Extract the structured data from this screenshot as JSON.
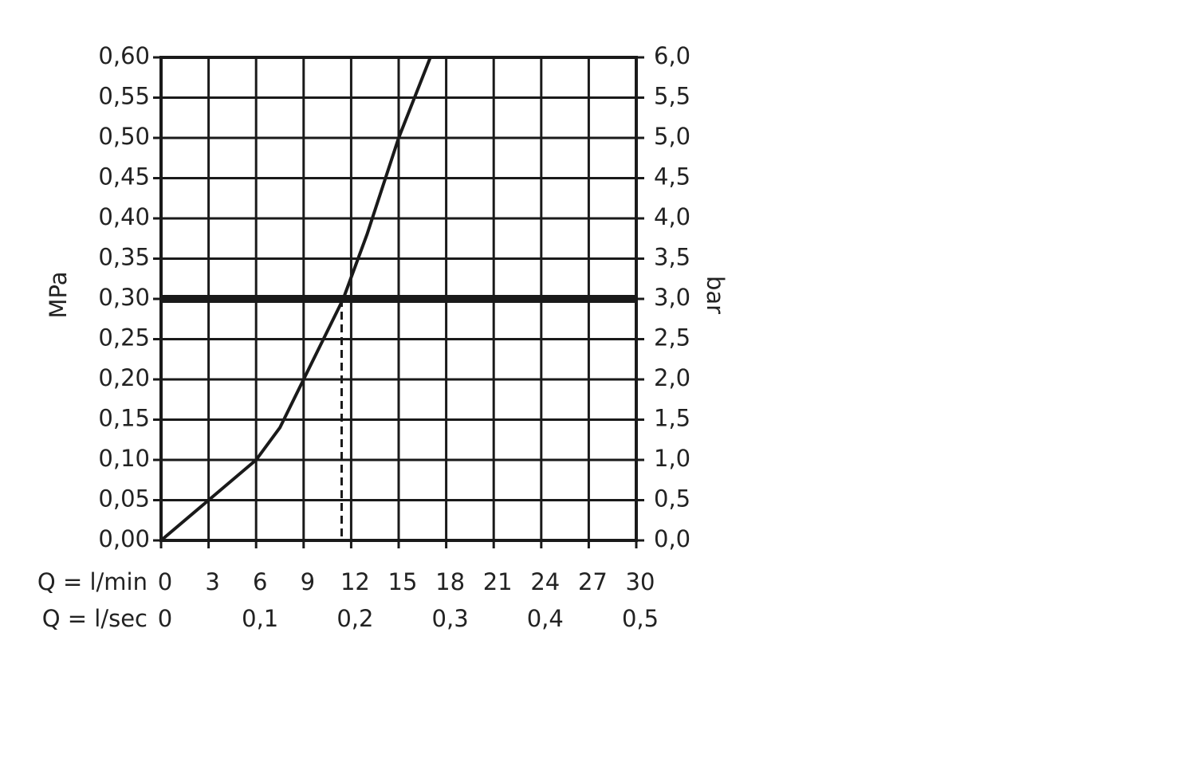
{
  "chart_data": {
    "type": "line",
    "ylabel": "MPa",
    "y2label": "bar",
    "xlabel": "Q = l/min",
    "x2label": "Q = l/sec",
    "xlim": [
      0,
      30
    ],
    "xticks": [
      0,
      3,
      6,
      9,
      12,
      15,
      18,
      21,
      24,
      27,
      30
    ],
    "x2lim": [
      0,
      0.5
    ],
    "x2ticks": [
      0,
      {
        "value": 0.1,
        "label": "0,1"
      },
      {
        "value": 0.2,
        "label": "0,2"
      },
      {
        "value": 0.3,
        "label": "0,3"
      },
      {
        "value": 0.4,
        "label": "0,4"
      },
      {
        "value": 0.5,
        "label": "0,5"
      }
    ],
    "ylim": [
      0,
      0.6
    ],
    "yticks": [
      {
        "value": 0,
        "label": "0,00"
      },
      {
        "value": 0.05,
        "label": "0,05"
      },
      {
        "value": 0.1,
        "label": "0,10"
      },
      {
        "value": 0.15,
        "label": "0,15"
      },
      {
        "value": 0.2,
        "label": "0,20"
      },
      {
        "value": 0.25,
        "label": "0,25"
      },
      {
        "value": 0.3,
        "label": "0,30"
      },
      {
        "value": 0.35,
        "label": "0,35"
      },
      {
        "value": 0.4,
        "label": "0,40"
      },
      {
        "value": 0.45,
        "label": "0,45"
      },
      {
        "value": 0.5,
        "label": "0,50"
      },
      {
        "value": 0.55,
        "label": "0,55"
      },
      {
        "value": 0.6,
        "label": "0,60"
      }
    ],
    "y2lim": [
      0,
      6
    ],
    "y2ticks": [
      {
        "value": 0,
        "label": "0,0"
      },
      {
        "value": 0.5,
        "label": "0,5"
      },
      {
        "value": 1,
        "label": "1,0"
      },
      {
        "value": 1.5,
        "label": "1,5"
      },
      {
        "value": 2,
        "label": "2,0"
      },
      {
        "value": 2.5,
        "label": "2,5"
      },
      {
        "value": 3,
        "label": "3,0"
      },
      {
        "value": 3.5,
        "label": "3,5"
      },
      {
        "value": 4,
        "label": "4,0"
      },
      {
        "value": 4.5,
        "label": "4,5"
      },
      {
        "value": 5,
        "label": "5,0"
      },
      {
        "value": 5.5,
        "label": "5,5"
      },
      {
        "value": 6,
        "label": "6,0"
      }
    ],
    "grid": true,
    "x": [
      0,
      3,
      6,
      7.5,
      9,
      10.5,
      11.5,
      13,
      15,
      17
    ],
    "series": [
      {
        "color": "#1a1a1a",
        "values": [
          0,
          0.05,
          0.1,
          0.14,
          0.2,
          0.26,
          0.3,
          0.38,
          0.5,
          0.6
        ]
      }
    ],
    "hline": 0.3,
    "vline": 11.4
  }
}
